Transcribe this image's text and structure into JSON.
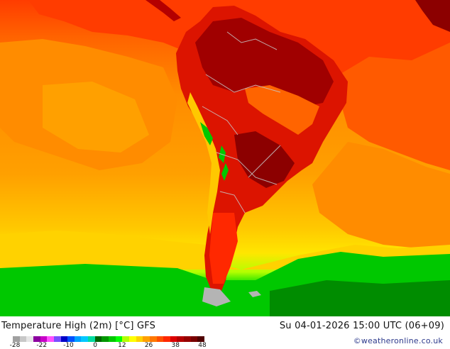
{
  "map": {
    "title": "Temperature High (2m) [°C] GFS",
    "valid_time": "Su 04-01-2026 15:00 UTC (06+09)",
    "credit": "©weatheronline.co.uk"
  },
  "legend": {
    "ticks": [
      "-28",
      "-22",
      "-10",
      "0",
      "12",
      "26",
      "38",
      "48"
    ],
    "colors": [
      "#a0a0a0",
      "#c8c8c8",
      "#e6e6e6",
      "#8c00a0",
      "#c800c8",
      "#ff50ff",
      "#7850ff",
      "#0000c8",
      "#0050ff",
      "#00a0ff",
      "#00c8ff",
      "#00dca0",
      "#006400",
      "#009600",
      "#00c800",
      "#00ff00",
      "#b4ff00",
      "#ffff00",
      "#ffd200",
      "#ffa000",
      "#ff7800",
      "#ff5000",
      "#ff2800",
      "#dc0000",
      "#b40000",
      "#960000",
      "#780000",
      "#500000"
    ]
  },
  "palette": {
    "ocean_warm": "#ff8c00",
    "ocean_orange": "#ffa000",
    "ocean_yellow": "#ffd200",
    "ocean_green": "#00c800",
    "tropic_red": "#ff2800",
    "land_dark": "#b40000",
    "land_deep": "#8c0000",
    "border_gray": "#a0a0a0"
  }
}
